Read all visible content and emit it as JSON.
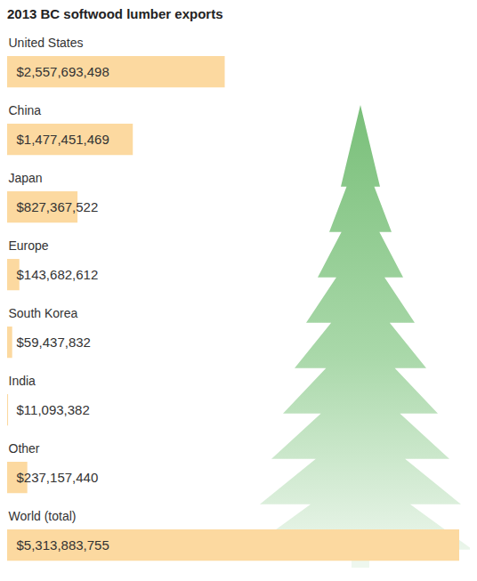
{
  "chart_data": {
    "type": "bar",
    "title": "2013 BC softwood lumber exports",
    "orientation": "horizontal",
    "categories": [
      "United States",
      "China",
      "Japan",
      "Europe",
      "South Korea",
      "India",
      "Other",
      "World (total)"
    ],
    "values": [
      2557693498,
      1477451469,
      827367522,
      143682612,
      59437832,
      11093382,
      237157440,
      5313883755
    ],
    "value_labels": [
      "$2,557,693,498",
      "$1,477,451,469",
      "$827,367,522",
      "$143,682,612",
      "$59,437,832",
      "$11,093,382",
      "$237,157,440",
      "$5,313,883,755"
    ],
    "data_labels": true,
    "color": "#fcd9a0",
    "xlim": [
      0,
      5313883755
    ],
    "tick_labels": false,
    "grid": false
  }
}
